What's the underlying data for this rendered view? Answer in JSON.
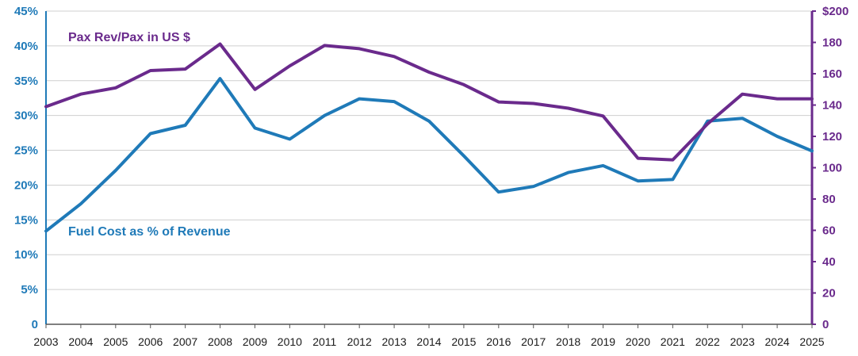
{
  "chart_data": {
    "type": "line",
    "categories": [
      "2003",
      "2004",
      "2005",
      "2006",
      "2007",
      "2008",
      "2009",
      "2010",
      "2011",
      "2012",
      "2013",
      "2014",
      "2015",
      "2016",
      "2017",
      "2018",
      "2019",
      "2020",
      "2021",
      "2022",
      "2023",
      "2024",
      "2025"
    ],
    "left_axis": {
      "ticks": [
        "0",
        "5%",
        "10%",
        "15%",
        "20%",
        "25%",
        "30%",
        "35%",
        "40%",
        "45%"
      ],
      "ylim": [
        0,
        45
      ],
      "color": "#1f7ab8"
    },
    "right_axis": {
      "ticks": [
        "0",
        "20",
        "40",
        "60",
        "80",
        "100",
        "120",
        "140",
        "160",
        "180",
        "$200"
      ],
      "ylim": [
        0,
        200
      ],
      "color": "#6a2a8c"
    },
    "series": [
      {
        "name": "Fuel Cost as % of Revenue",
        "axis": "left",
        "color": "#1f7ab8",
        "values": [
          13.4,
          17.3,
          22.1,
          27.4,
          28.6,
          35.3,
          28.2,
          26.6,
          30.0,
          32.4,
          32.0,
          29.2,
          24.2,
          19.0,
          19.8,
          21.8,
          22.8,
          20.6,
          20.8,
          29.2,
          29.6,
          27.0,
          24.9
        ]
      },
      {
        "name": "Pax Rev/Pax in US $",
        "axis": "right",
        "color": "#6a2a8c",
        "values": [
          139,
          147,
          151,
          162,
          163,
          179,
          150,
          165,
          178,
          176,
          171,
          161,
          153,
          142,
          141,
          138,
          133,
          106,
          105,
          128,
          147,
          144,
          144
        ]
      }
    ],
    "grid": true
  }
}
